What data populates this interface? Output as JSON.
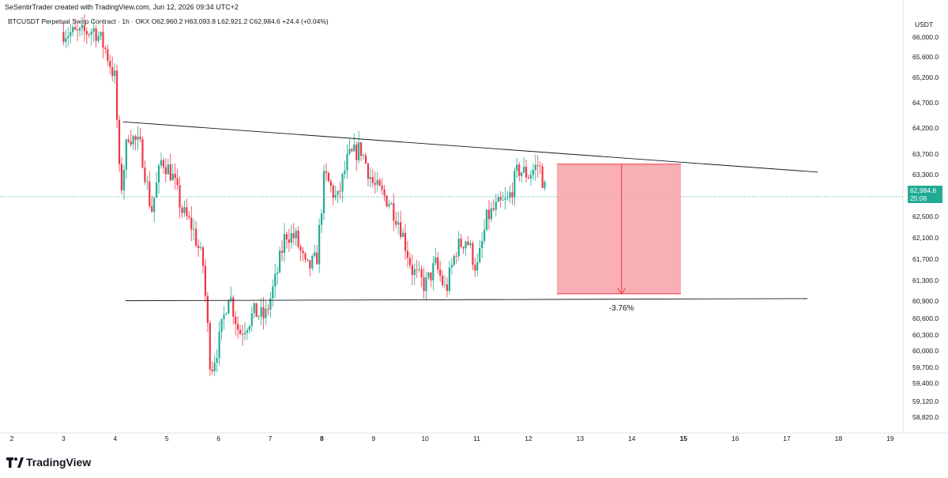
{
  "header": {
    "credit": "SeSentirTrader created with TradingView.com, Jun 12, 2026 09:34 UTC+2",
    "symbol_line": "BTCUSDT Perpetual Swap Contract · 1h · OKX  O62,960.2  H63,093.8  L62,921.2  C62,984.6  +24.4 (+0.04%)"
  },
  "price_axis": {
    "currency": "USDT",
    "ticks": [
      "66,000.0",
      "65,600.0",
      "65,200.0",
      "64,700.0",
      "64,200.0",
      "63,700.0",
      "63,300.0",
      "62,500.0",
      "62,100.0",
      "61,700.0",
      "61,300.0",
      "60,900.0",
      "60,600.0",
      "60,300.0",
      "60,000.0",
      "59,700.0",
      "59,400.0",
      "59,120.0",
      "58,820.0"
    ]
  },
  "last_price": {
    "value": "62,984.6",
    "countdown": "25:06"
  },
  "colors": {
    "up": "#22ab94",
    "down": "#f23645",
    "zone": "#f7a1a8",
    "zone_edge": "#f23645",
    "line": "#131722"
  },
  "chart_data": {
    "type": "candlestick",
    "symbol": "BTCUSDT Perpetual Swap Contract",
    "interval": "1h",
    "x_ticks": [
      {
        "label": "2",
        "bold": false
      },
      {
        "label": "3",
        "bold": false
      },
      {
        "label": "4",
        "bold": false
      },
      {
        "label": "5",
        "bold": false
      },
      {
        "label": "6",
        "bold": false
      },
      {
        "label": "7",
        "bold": false
      },
      {
        "label": "8",
        "bold": true
      },
      {
        "label": "9",
        "bold": false
      },
      {
        "label": "10",
        "bold": false
      },
      {
        "label": "11",
        "bold": false
      },
      {
        "label": "12",
        "bold": false
      },
      {
        "label": "13",
        "bold": false
      },
      {
        "label": "14",
        "bold": false
      },
      {
        "label": "15",
        "bold": true
      },
      {
        "label": "16",
        "bold": false
      },
      {
        "label": "17",
        "bold": false
      },
      {
        "label": "18",
        "bold": false
      },
      {
        "label": "19",
        "bold": false
      }
    ],
    "ylim": [
      58700,
      66200
    ],
    "price_path": [
      [
        3.0,
        66100
      ],
      [
        3.3,
        66050
      ],
      [
        3.6,
        66150
      ],
      [
        3.8,
        65800
      ],
      [
        4.0,
        65200
      ],
      [
        4.1,
        63000
      ],
      [
        4.25,
        64200
      ],
      [
        4.5,
        63900
      ],
      [
        4.7,
        62700
      ],
      [
        4.9,
        63700
      ],
      [
        5.1,
        63400
      ],
      [
        5.3,
        62700
      ],
      [
        5.5,
        62400
      ],
      [
        5.7,
        61700
      ],
      [
        5.85,
        59700
      ],
      [
        6.0,
        60200
      ],
      [
        6.2,
        61200
      ],
      [
        6.4,
        60400
      ],
      [
        6.7,
        60800
      ],
      [
        6.9,
        60700
      ],
      [
        7.1,
        61400
      ],
      [
        7.3,
        62300
      ],
      [
        7.5,
        62200
      ],
      [
        7.7,
        61600
      ],
      [
        7.9,
        61800
      ],
      [
        8.05,
        63400
      ],
      [
        8.3,
        62900
      ],
      [
        8.5,
        63700
      ],
      [
        8.75,
        63900
      ],
      [
        9.0,
        63200
      ],
      [
        9.3,
        62900
      ],
      [
        9.5,
        62500
      ],
      [
        9.75,
        61600
      ],
      [
        10.0,
        61300
      ],
      [
        10.2,
        61700
      ],
      [
        10.4,
        61200
      ],
      [
        10.6,
        62000
      ],
      [
        10.8,
        62200
      ],
      [
        11.0,
        61600
      ],
      [
        11.2,
        62600
      ],
      [
        11.4,
        62800
      ],
      [
        11.6,
        62900
      ],
      [
        11.8,
        63500
      ],
      [
        12.0,
        63400
      ],
      [
        12.2,
        63600
      ],
      [
        12.35,
        63000
      ]
    ],
    "trend_upper": {
      "x1": 4.15,
      "y1": 64400,
      "x2": 17.6,
      "y2": 63450
    },
    "trend_lower": {
      "x1": 4.2,
      "y1": 61020,
      "x2": 17.4,
      "y2": 61060
    },
    "projection": {
      "x1": 12.55,
      "x2": 14.95,
      "top": 63600,
      "bottom": 61150,
      "arrow_x": 13.8,
      "label": "-3.76%"
    },
    "last_price": 62984.6
  }
}
